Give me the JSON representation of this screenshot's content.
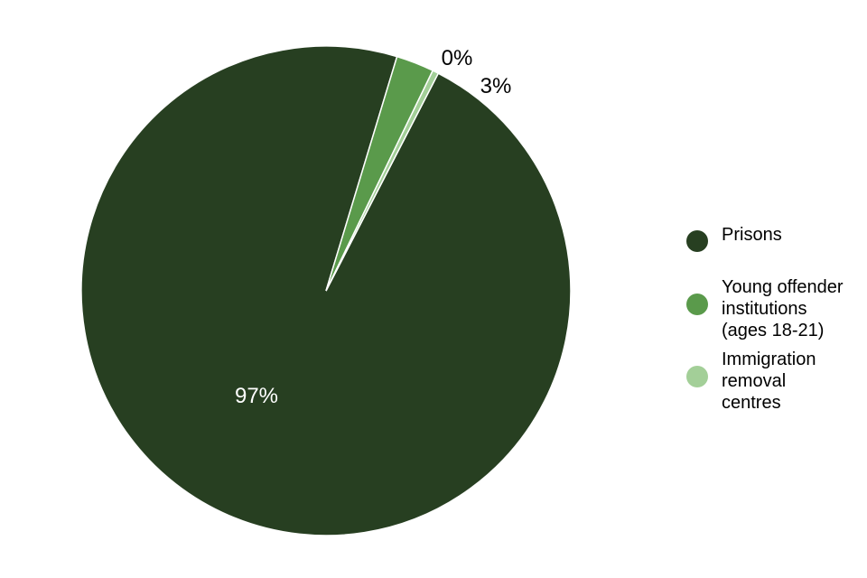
{
  "chart_data": {
    "type": "pie",
    "categories": [
      "Prisons",
      "Young offender institutions\n(ages 18-21)",
      "Immigration\nremoval\ncentres"
    ],
    "values": [
      97.1,
      2.5,
      0.4
    ],
    "labels": [
      "97%",
      "3%",
      "0%"
    ],
    "colors": [
      "#273f21",
      "#5a9a4b",
      "#a3cf98"
    ],
    "legend_position": "right"
  }
}
